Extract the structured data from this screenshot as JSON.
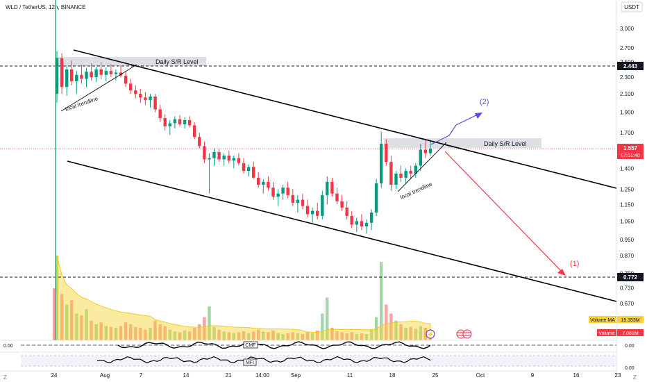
{
  "header": {
    "symbol_line": "WLD / TetherUS, 12h, BINANCE",
    "currency": "USDT"
  },
  "chart_data": {
    "type": "candlestick",
    "symbol": "WLD / TetherUS",
    "interval": "12h",
    "exchange": "BINANCE",
    "y_axis": {
      "scale": "log",
      "ticks": [
        3.0,
        2.7,
        2.5,
        2.3,
        2.1,
        1.9,
        1.7,
        1.4,
        1.25,
        1.15,
        1.05,
        0.95,
        0.87,
        0.79,
        0.73,
        0.67
      ],
      "tick_labels": [
        "3.000",
        "2.700",
        "2.500",
        "2.300",
        "2.100",
        "1.900",
        "1.700",
        "1.400",
        "1.250",
        "1.150",
        "1.050",
        "0.950",
        "0.870",
        "0.790",
        "0.730",
        "0.670"
      ]
    },
    "x_axis": {
      "tick_labels": [
        "24",
        "Aug",
        "7",
        "14",
        "21",
        "14:00",
        "Sep",
        "11",
        "18",
        "25",
        "Oct",
        "9",
        "16",
        "23"
      ]
    },
    "price_lines": [
      {
        "label": "2.443",
        "value": 2.443,
        "color": "#131722"
      },
      {
        "label": "0.772",
        "value": 0.772,
        "color": "#131722"
      },
      {
        "label": "1.557",
        "value": 1.557,
        "color": "#f23645",
        "countdown": "07:01:40"
      }
    ],
    "annotations": {
      "sr_top": "Daily S/R Level",
      "sr_mid": "Daily S/R Level",
      "trend_left": "local trendline",
      "trend_right": "local trendline",
      "scenario_up": "(2)",
      "scenario_down": "(1)"
    },
    "up_color": "#089981",
    "down_color": "#f23645",
    "candles": [
      [
        2.1,
        2.65,
        2.0,
        2.55
      ],
      [
        2.55,
        2.62,
        2.1,
        2.18
      ],
      [
        2.18,
        2.45,
        2.08,
        2.4
      ],
      [
        2.4,
        2.52,
        2.2,
        2.25
      ],
      [
        2.25,
        2.38,
        2.1,
        2.33
      ],
      [
        2.33,
        2.46,
        2.22,
        2.28
      ],
      [
        2.28,
        2.42,
        2.18,
        2.37
      ],
      [
        2.37,
        2.48,
        2.26,
        2.3
      ],
      [
        2.3,
        2.44,
        2.24,
        2.4
      ],
      [
        2.4,
        2.5,
        2.28,
        2.33
      ],
      [
        2.33,
        2.43,
        2.25,
        2.38
      ],
      [
        2.38,
        2.47,
        2.3,
        2.34
      ],
      [
        2.34,
        2.4,
        2.26,
        2.36
      ],
      [
        2.36,
        2.45,
        2.3,
        2.32
      ],
      [
        2.32,
        2.38,
        2.18,
        2.22
      ],
      [
        2.22,
        2.28,
        2.1,
        2.14
      ],
      [
        2.14,
        2.2,
        2.05,
        2.1
      ],
      [
        2.1,
        2.16,
        2.0,
        2.06
      ],
      [
        2.06,
        2.12,
        1.98,
        2.03
      ],
      [
        2.03,
        2.1,
        1.95,
        2.07
      ],
      [
        2.07,
        2.1,
        1.9,
        1.93
      ],
      [
        1.93,
        1.98,
        1.8,
        1.84
      ],
      [
        1.84,
        1.88,
        1.72,
        1.76
      ],
      [
        1.76,
        1.82,
        1.68,
        1.79
      ],
      [
        1.79,
        1.86,
        1.74,
        1.83
      ],
      [
        1.83,
        1.87,
        1.76,
        1.78
      ],
      [
        1.78,
        1.85,
        1.74,
        1.82
      ],
      [
        1.82,
        1.86,
        1.75,
        1.77
      ],
      [
        1.77,
        1.8,
        1.64,
        1.66
      ],
      [
        1.66,
        1.7,
        1.56,
        1.58
      ],
      [
        1.58,
        1.62,
        1.44,
        1.47
      ],
      [
        1.47,
        1.52,
        1.22,
        1.48
      ],
      [
        1.48,
        1.56,
        1.42,
        1.53
      ],
      [
        1.53,
        1.56,
        1.45,
        1.47
      ],
      [
        1.47,
        1.52,
        1.42,
        1.5
      ],
      [
        1.5,
        1.54,
        1.44,
        1.46
      ],
      [
        1.46,
        1.5,
        1.4,
        1.48
      ],
      [
        1.48,
        1.52,
        1.42,
        1.44
      ],
      [
        1.44,
        1.48,
        1.36,
        1.38
      ],
      [
        1.38,
        1.43,
        1.34,
        1.41
      ],
      [
        1.41,
        1.45,
        1.32,
        1.33
      ],
      [
        1.33,
        1.37,
        1.26,
        1.28
      ],
      [
        1.28,
        1.32,
        1.22,
        1.3
      ],
      [
        1.3,
        1.34,
        1.24,
        1.26
      ],
      [
        1.26,
        1.3,
        1.18,
        1.2
      ],
      [
        1.2,
        1.25,
        1.14,
        1.22
      ],
      [
        1.22,
        1.28,
        1.18,
        1.26
      ],
      [
        1.26,
        1.3,
        1.19,
        1.21
      ],
      [
        1.21,
        1.25,
        1.14,
        1.16
      ],
      [
        1.16,
        1.21,
        1.1,
        1.18
      ],
      [
        1.18,
        1.22,
        1.12,
        1.14
      ],
      [
        1.14,
        1.18,
        1.07,
        1.09
      ],
      [
        1.09,
        1.13,
        1.04,
        1.11
      ],
      [
        1.11,
        1.16,
        1.06,
        1.08
      ],
      [
        1.08,
        1.24,
        1.06,
        1.21
      ],
      [
        1.21,
        1.34,
        1.15,
        1.3
      ],
      [
        1.3,
        1.33,
        1.2,
        1.22
      ],
      [
        1.22,
        1.26,
        1.15,
        1.17
      ],
      [
        1.17,
        1.21,
        1.11,
        1.13
      ],
      [
        1.13,
        1.17,
        1.06,
        1.08
      ],
      [
        1.08,
        1.11,
        1.01,
        1.03
      ],
      [
        1.03,
        1.07,
        0.99,
        1.05
      ],
      [
        1.05,
        1.09,
        1.0,
        1.02
      ],
      [
        1.02,
        1.06,
        0.98,
        1.04
      ],
      [
        1.04,
        1.12,
        1.0,
        1.1
      ],
      [
        1.1,
        1.32,
        1.08,
        1.29
      ],
      [
        1.29,
        1.71,
        1.26,
        1.6
      ],
      [
        1.6,
        1.64,
        1.42,
        1.45
      ],
      [
        1.45,
        1.5,
        1.24,
        1.28
      ],
      [
        1.28,
        1.38,
        1.25,
        1.36
      ],
      [
        1.36,
        1.42,
        1.3,
        1.33
      ],
      [
        1.33,
        1.4,
        1.29,
        1.38
      ],
      [
        1.38,
        1.42,
        1.32,
        1.36
      ],
      [
        1.36,
        1.44,
        1.33,
        1.42
      ],
      [
        1.42,
        1.6,
        1.38,
        1.55
      ],
      [
        1.55,
        1.63,
        1.48,
        1.52
      ],
      [
        1.52,
        1.62,
        1.5,
        1.557
      ]
    ],
    "volumes": [
      95,
      52,
      40,
      45,
      30,
      28,
      35,
      22,
      18,
      20,
      16,
      15,
      14,
      16,
      20,
      18,
      15,
      14,
      12,
      14,
      22,
      18,
      16,
      12,
      10,
      9,
      11,
      10,
      14,
      18,
      26,
      38,
      15,
      12,
      10,
      9,
      8,
      9,
      10,
      8,
      10,
      12,
      10,
      9,
      11,
      8,
      7,
      8,
      9,
      8,
      7,
      9,
      8,
      11,
      30,
      48,
      14,
      10,
      9,
      8,
      9,
      7,
      8,
      7,
      12,
      26,
      88,
      40,
      30,
      22,
      18,
      14,
      15,
      13,
      16,
      14,
      10
    ],
    "volume_ma": {
      "label": "Volume MA",
      "value": "19.353M"
    },
    "volume_current": {
      "label": "Volume",
      "value": "7.081M"
    }
  },
  "indicators": {
    "cmf": {
      "name": "CMF",
      "scale_label": "0.00"
    },
    "mfi": {
      "name": "MFI",
      "scale_label": "0.00"
    },
    "left_scale_label": "0.00"
  },
  "bottom_bar": {
    "left": "Z",
    "right": "Z"
  },
  "colors": {
    "up": "#089981",
    "down": "#f23645",
    "scenario_up": "#5b4dd6",
    "scenario_down": "#f23645",
    "sr_zone": "#d1d4dc"
  }
}
